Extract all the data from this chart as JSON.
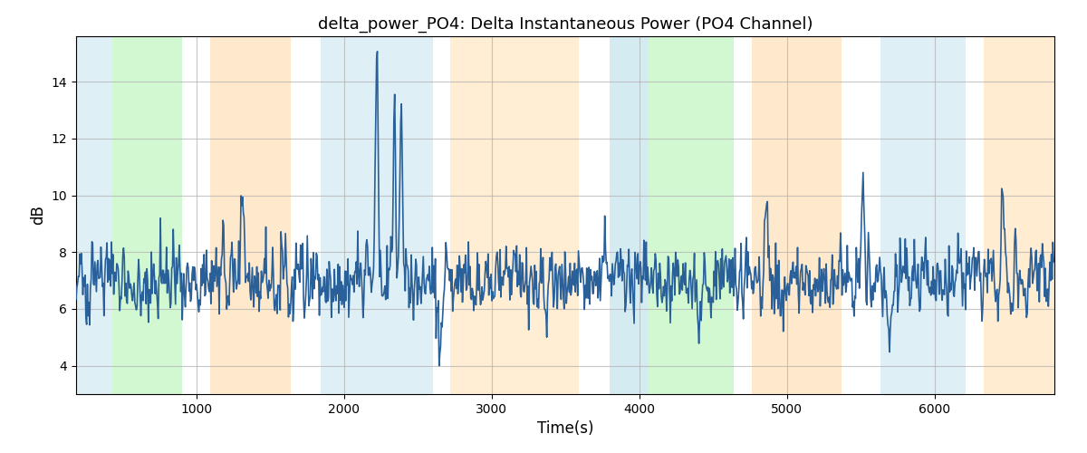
{
  "title": "delta_power_PO4: Delta Instantaneous Power (PO4 Channel)",
  "xlabel": "Time(s)",
  "ylabel": "dB",
  "xlim": [
    185,
    6810
  ],
  "ylim": [
    3.0,
    15.6
  ],
  "yticks": [
    4,
    6,
    8,
    10,
    12,
    14
  ],
  "xticks": [
    1000,
    2000,
    3000,
    4000,
    5000,
    6000
  ],
  "line_color": "#2a6099",
  "line_width": 1.2,
  "bg_regions": [
    {
      "xmin": 185,
      "xmax": 430,
      "color": "#add8e6",
      "alpha": 0.4
    },
    {
      "xmin": 430,
      "xmax": 900,
      "color": "#90ee90",
      "alpha": 0.4
    },
    {
      "xmin": 1090,
      "xmax": 1640,
      "color": "#ffd59a",
      "alpha": 0.5
    },
    {
      "xmin": 1840,
      "xmax": 2600,
      "color": "#add8e6",
      "alpha": 0.4
    },
    {
      "xmin": 2720,
      "xmax": 3590,
      "color": "#ffd59a",
      "alpha": 0.42
    },
    {
      "xmin": 3800,
      "xmax": 4060,
      "color": "#add8e6",
      "alpha": 0.5
    },
    {
      "xmin": 4060,
      "xmax": 4640,
      "color": "#90ee90",
      "alpha": 0.4
    },
    {
      "xmin": 4760,
      "xmax": 5370,
      "color": "#ffd59a",
      "alpha": 0.5
    },
    {
      "xmin": 5630,
      "xmax": 6210,
      "color": "#add8e6",
      "alpha": 0.4
    },
    {
      "xmin": 6330,
      "xmax": 6810,
      "color": "#ffd59a",
      "alpha": 0.45
    }
  ],
  "grid_color": "#b0b0b0",
  "grid_alpha": 0.7,
  "fig_bg": "#ffffff",
  "title_fontsize": 13,
  "label_fontsize": 12
}
